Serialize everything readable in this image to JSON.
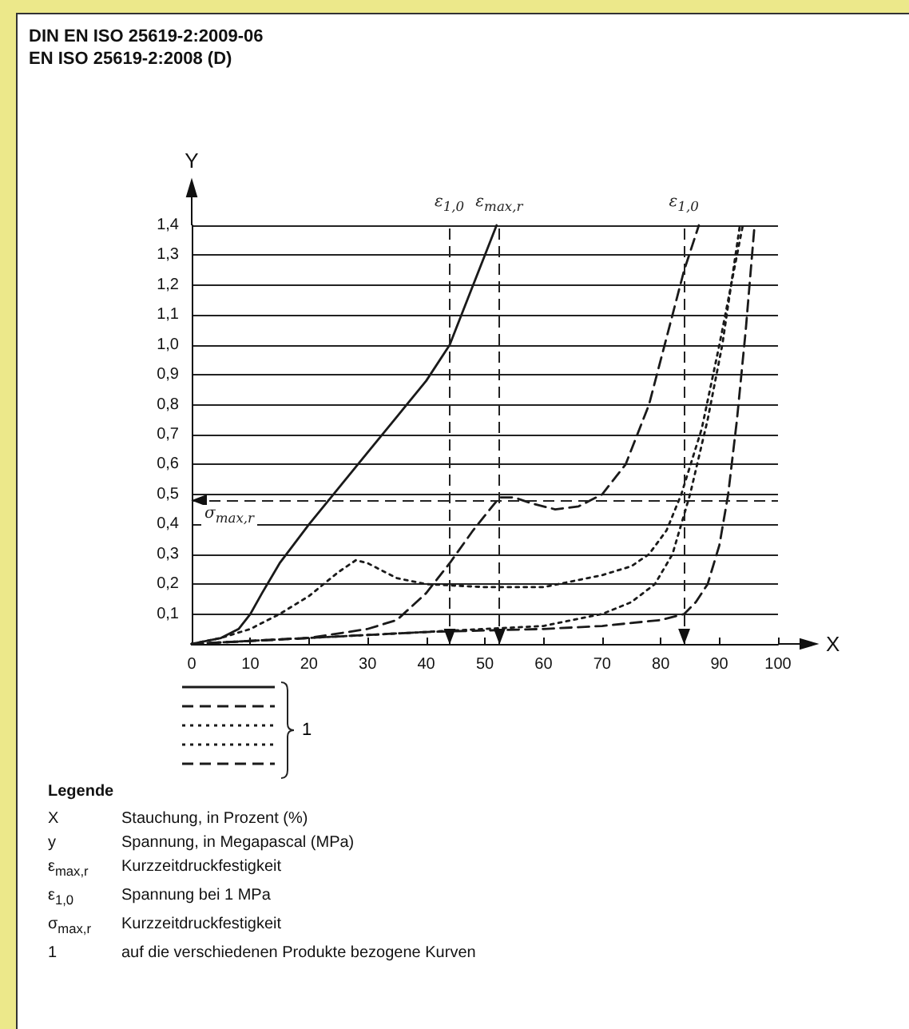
{
  "chart_data": {
    "type": "line",
    "title": "DIN EN ISO 25619-2:2009-06",
    "subtitle": "EN ISO 25619-2:2008 (D)",
    "xlabel": "X",
    "ylabel": "Y",
    "legend_title": "1",
    "grid": "y",
    "marker": "none",
    "xlim": [
      0,
      100
    ],
    "xticks": [
      0,
      10,
      20,
      30,
      40,
      50,
      60,
      70,
      80,
      90,
      100
    ],
    "ylim": [
      0,
      1.4
    ],
    "yticks": [
      {
        "value": 0,
        "label": null
      },
      {
        "value": 0.1,
        "label": "0,1"
      },
      {
        "value": 0.2,
        "label": "0,2"
      },
      {
        "value": 0.3,
        "label": "0,3"
      },
      {
        "value": 0.4,
        "label": "0,4"
      },
      {
        "value": 0.5,
        "label": "0,5"
      },
      {
        "value": 0.6,
        "label": "0,6"
      },
      {
        "value": 0.7,
        "label": "0,7"
      },
      {
        "value": 0.8,
        "label": "0,8"
      },
      {
        "value": 0.9,
        "label": "0,9"
      },
      {
        "value": 1.0,
        "label": "1,0"
      },
      {
        "value": 1.1,
        "label": "1,1"
      },
      {
        "value": 1.2,
        "label": "1,2"
      },
      {
        "value": 1.3,
        "label": "1,3"
      },
      {
        "value": 1.4,
        "label": "1,4"
      }
    ],
    "series": [
      {
        "color": "#1a1a1a",
        "line_style": "solid",
        "x": [
          0,
          5,
          8,
          10,
          12,
          15,
          20,
          25,
          30,
          35,
          40,
          44,
          47,
          50,
          52
        ],
        "values": [
          0,
          0.02,
          0.05,
          0.1,
          0.17,
          0.27,
          0.4,
          0.52,
          0.64,
          0.76,
          0.88,
          1.0,
          1.15,
          1.3,
          1.4
        ]
      },
      {
        "color": "#1a1a1a",
        "line_style": "dashed",
        "x": [
          0,
          10,
          20,
          30,
          35,
          40,
          44,
          48,
          52.5,
          55,
          58,
          62,
          66,
          70,
          74,
          78,
          80,
          82,
          84,
          86.5
        ],
        "values": [
          0,
          0.01,
          0.02,
          0.05,
          0.08,
          0.17,
          0.27,
          0.38,
          0.49,
          0.49,
          0.47,
          0.45,
          0.46,
          0.5,
          0.6,
          0.8,
          0.95,
          1.1,
          1.25,
          1.4
        ]
      },
      {
        "color": "#1a1a1a",
        "line_style": "dotted",
        "x": [
          0,
          5,
          10,
          15,
          20,
          25,
          28,
          30,
          35,
          40,
          50,
          60,
          70,
          75,
          78,
          81,
          83.5,
          87,
          90,
          92,
          94
        ],
        "values": [
          0,
          0.02,
          0.05,
          0.1,
          0.16,
          0.24,
          0.28,
          0.27,
          0.22,
          0.2,
          0.19,
          0.19,
          0.23,
          0.26,
          0.3,
          0.38,
          0.5,
          0.72,
          1.0,
          1.2,
          1.4
        ]
      },
      {
        "color": "#1a1a1a",
        "line_style": "dotted",
        "x": [
          0,
          10,
          20,
          30,
          40,
          50,
          60,
          70,
          75,
          79,
          82,
          85,
          88,
          90.5,
          92,
          93.5
        ],
        "values": [
          0,
          0.01,
          0.02,
          0.03,
          0.04,
          0.05,
          0.06,
          0.1,
          0.14,
          0.2,
          0.3,
          0.5,
          0.75,
          1.0,
          1.2,
          1.4
        ]
      },
      {
        "color": "#1a1a1a",
        "line_style": "dashed",
        "x": [
          0,
          10,
          20,
          40,
          60,
          70,
          80,
          84,
          86,
          88,
          90,
          91.5,
          93,
          94.5,
          96
        ],
        "values": [
          0,
          0.01,
          0.02,
          0.04,
          0.05,
          0.06,
          0.08,
          0.1,
          0.14,
          0.2,
          0.33,
          0.5,
          0.75,
          1.05,
          1.4
        ]
      }
    ],
    "ref_lines": [
      {
        "axis": "x",
        "value": 44,
        "label": "ε$_{1,0}$",
        "line_style": "dashed"
      },
      {
        "axis": "x",
        "value": 52.5,
        "label": "ε$_{max,r}$",
        "line_style": "dashed"
      },
      {
        "axis": "x",
        "value": 84,
        "label": "ε$_{1,0}$",
        "line_style": "dashed"
      },
      {
        "axis": "y",
        "value": 0.48,
        "label": "σ$_{max,r}$",
        "line_style": "dashed"
      }
    ],
    "annotations": [
      "Legende",
      "X Stauchung, in Prozent (%)",
      "y Spannung, in Megapascal (MPa)",
      "ε$_{max,r}$ Kurzzeitdruckfestigkeit",
      "ε$_{1,0}$ Spannung bei 1 MPa",
      "σ$_{max,r}$ Kurzzeitdruckfestigkeit",
      "1 auf die verschiedenen Produkte bezogene Kurven"
    ]
  }
}
